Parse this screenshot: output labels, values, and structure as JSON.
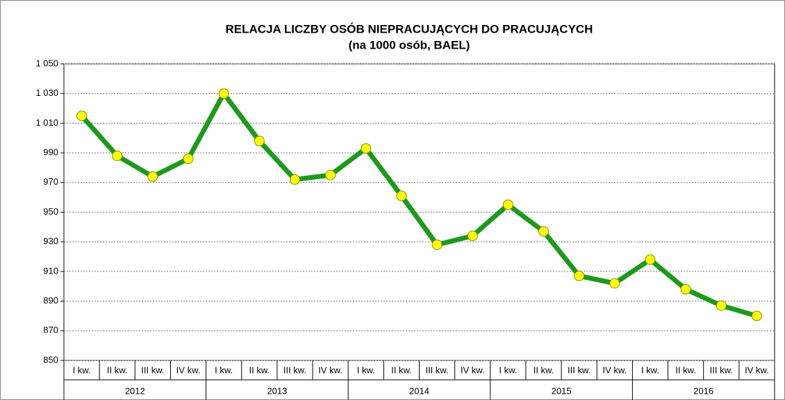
{
  "chart_data": {
    "type": "line",
    "title": "RELACJA LICZBY OSÓB NIEPRACUJĄCYCH DO PRACUJĄCYCH",
    "subtitle": "(na 1000 osób, BAEL)",
    "categories": [
      "I kw.",
      "II kw.",
      "III kw.",
      "IV kw.",
      "I kw.",
      "II kw.",
      "III kw.",
      "IV kw.",
      "I kw.",
      "II kw.",
      "III kw.",
      "IV kw.",
      "I kw.",
      "II kw.",
      "III kw.",
      "IV kw.",
      "I kw.",
      "II kw.",
      "III kw.",
      "IV kw."
    ],
    "category_groups": [
      "2012",
      "2013",
      "2014",
      "2015",
      "2016"
    ],
    "values": [
      1015,
      988,
      974,
      986,
      1030,
      998,
      972,
      975,
      993,
      961,
      928,
      934,
      955,
      937,
      907,
      902,
      918,
      898,
      887,
      880
    ],
    "color": "#1c9a1c",
    "marker_color": "#ffff00",
    "marker_edge": "#8a8a00",
    "ylim": [
      850,
      1050
    ],
    "yticks": [
      850,
      870,
      890,
      910,
      930,
      950,
      970,
      990,
      {
        "value": 1010,
        "label": "1 010"
      },
      {
        "value": 1030,
        "label": "1 030"
      },
      {
        "value": 1050,
        "label": "1 050"
      }
    ],
    "grid": true
  }
}
